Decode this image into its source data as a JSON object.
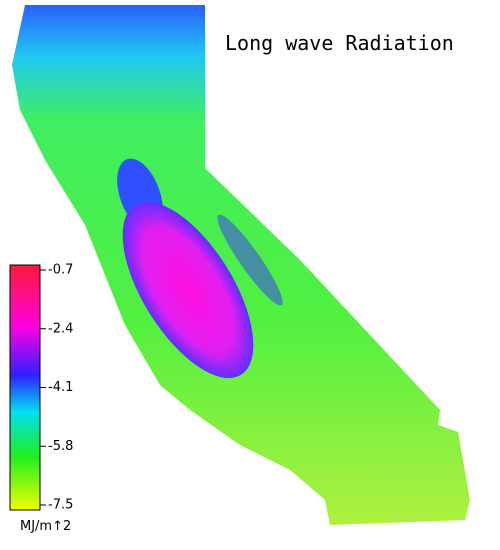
{
  "title": "Long wave Radiation",
  "colorbar": {
    "lim": [
      -0.7,
      -7.5
    ],
    "ticks": [
      -0.7,
      -2.4,
      -4.1,
      -5.8,
      -7.5
    ],
    "unit": "MJ/m↑2"
  }
}
